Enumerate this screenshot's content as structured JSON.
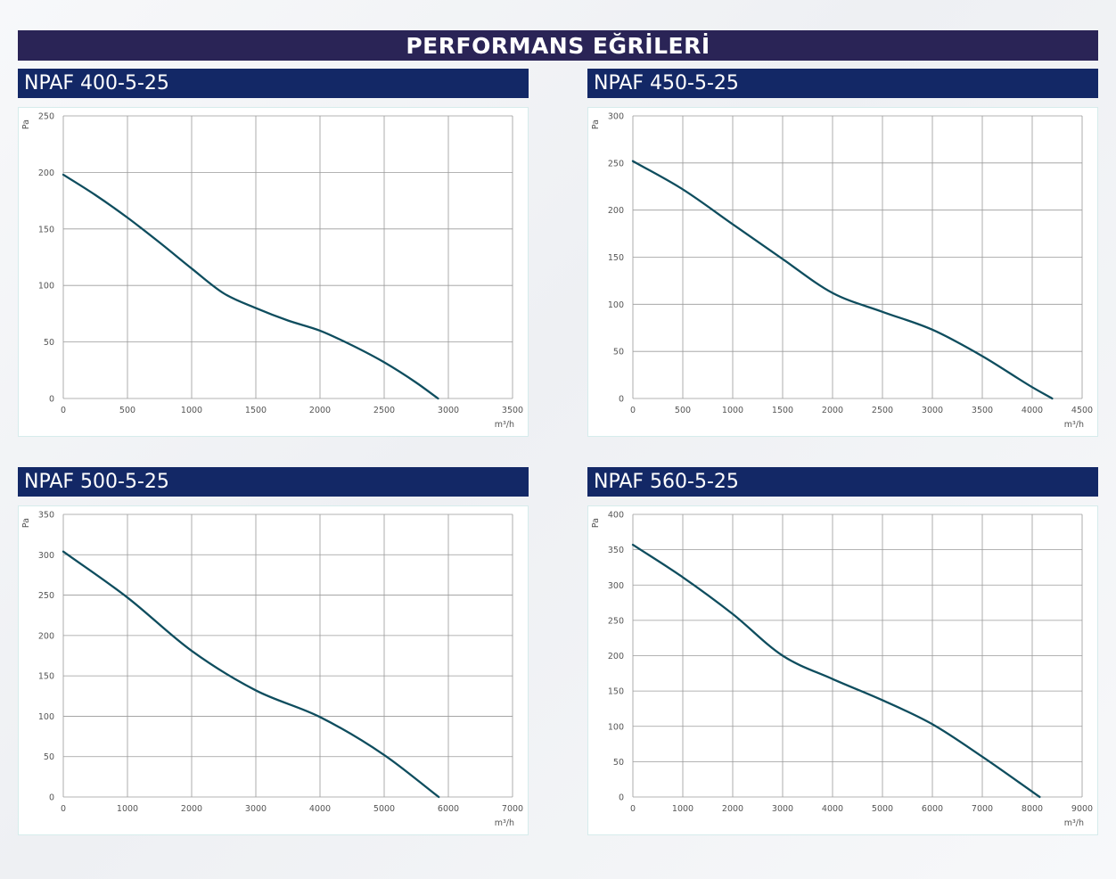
{
  "page": {
    "title": "PERFORMANS EĞRİLERİ"
  },
  "chart_data": [
    {
      "type": "line",
      "title": "NPAF 400-5-25",
      "ylabel": "Pa",
      "xlabel": "m³/h",
      "xlim": [
        0,
        3500
      ],
      "ylim": [
        0,
        250
      ],
      "x_ticks": [
        0,
        500,
        1000,
        1500,
        2000,
        2500,
        3000,
        3500
      ],
      "y_ticks": [
        0,
        50,
        100,
        150,
        200,
        250
      ],
      "grid": true,
      "series": [
        {
          "x": [
            0,
            250,
            500,
            750,
            1000,
            1250,
            1500,
            1750,
            2000,
            2250,
            2500,
            2750,
            2920
          ],
          "y": [
            198,
            180,
            160,
            138,
            115,
            93,
            80,
            69,
            60,
            47,
            32,
            14,
            0
          ]
        }
      ]
    },
    {
      "type": "line",
      "title": "NPAF 450-5-25",
      "ylabel": "Pa",
      "xlabel": "m³/h",
      "xlim": [
        0,
        4500
      ],
      "ylim": [
        0,
        300
      ],
      "x_ticks": [
        0,
        500,
        1000,
        1500,
        2000,
        2500,
        3000,
        3500,
        4000,
        4500
      ],
      "y_ticks": [
        0,
        50,
        100,
        150,
        200,
        250,
        300
      ],
      "grid": true,
      "series": [
        {
          "x": [
            0,
            500,
            1000,
            1500,
            2000,
            2500,
            3000,
            3500,
            4000,
            4200
          ],
          "y": [
            252,
            222,
            185,
            148,
            112,
            92,
            73,
            45,
            12,
            0
          ]
        }
      ]
    },
    {
      "type": "line",
      "title": "NPAF 500-5-25",
      "ylabel": "Pa",
      "xlabel": "m³/h",
      "xlim": [
        0,
        7000
      ],
      "ylim": [
        0,
        350
      ],
      "x_ticks": [
        0,
        1000,
        2000,
        3000,
        4000,
        5000,
        6000,
        7000
      ],
      "y_ticks": [
        0,
        50,
        100,
        150,
        200,
        250,
        300,
        350
      ],
      "grid": true,
      "series": [
        {
          "x": [
            0,
            1000,
            2000,
            3000,
            4000,
            5000,
            5850
          ],
          "y": [
            304,
            247,
            181,
            132,
            99,
            52,
            0
          ]
        }
      ]
    },
    {
      "type": "line",
      "title": "NPAF 560-5-25",
      "ylabel": "Pa",
      "xlabel": "m³/h",
      "xlim": [
        0,
        9000
      ],
      "ylim": [
        0,
        400
      ],
      "x_ticks": [
        0,
        1000,
        2000,
        3000,
        4000,
        5000,
        6000,
        7000,
        8000,
        9000
      ],
      "y_ticks": [
        0,
        50,
        100,
        150,
        200,
        250,
        300,
        350,
        400
      ],
      "grid": true,
      "series": [
        {
          "x": [
            0,
            1000,
            2000,
            3000,
            4000,
            5000,
            6000,
            7000,
            8150
          ],
          "y": [
            357,
            311,
            259,
            200,
            167,
            137,
            103,
            57,
            0
          ]
        }
      ]
    }
  ],
  "colors": {
    "curve": "#0e4d5e",
    "grid": "#9a9a9a",
    "header": "#132866",
    "title_bar": "#2a2456"
  }
}
